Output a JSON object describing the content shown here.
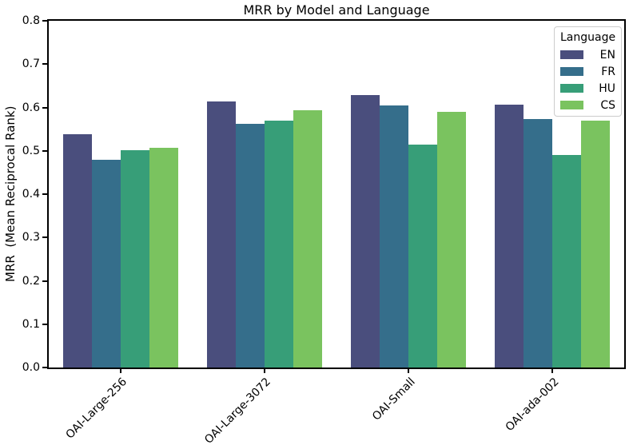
{
  "figure": {
    "kind": "matplotlib-bar-chart"
  },
  "chart_data": {
    "type": "bar",
    "title": "MRR by Model and Language",
    "xlabel": "",
    "ylabel": "MRR  (Mean Reciprocal Rank)",
    "ylim": [
      0,
      0.8
    ],
    "yticks": [
      "0.0",
      "0.1",
      "0.2",
      "0.3",
      "0.4",
      "0.5",
      "0.6",
      "0.7",
      "0.8"
    ],
    "grid": false,
    "categories": [
      "OAI-Large-256",
      "OAI-Large-3072",
      "OAI-Small",
      "OAI-ada-002"
    ],
    "series": [
      {
        "name": "EN",
        "color": "#4a4e7d",
        "values": [
          0.539,
          0.613,
          0.628,
          0.607
        ]
      },
      {
        "name": "FR",
        "color": "#356e8b",
        "values": [
          0.479,
          0.562,
          0.605,
          0.574
        ]
      },
      {
        "name": "HU",
        "color": "#379e78",
        "values": [
          0.501,
          0.57,
          0.515,
          0.49
        ]
      },
      {
        "name": "CS",
        "color": "#7ac35f",
        "values": [
          0.507,
          0.593,
          0.589,
          0.569
        ]
      }
    ],
    "legend": {
      "title": "Language",
      "position": "upper right"
    }
  }
}
